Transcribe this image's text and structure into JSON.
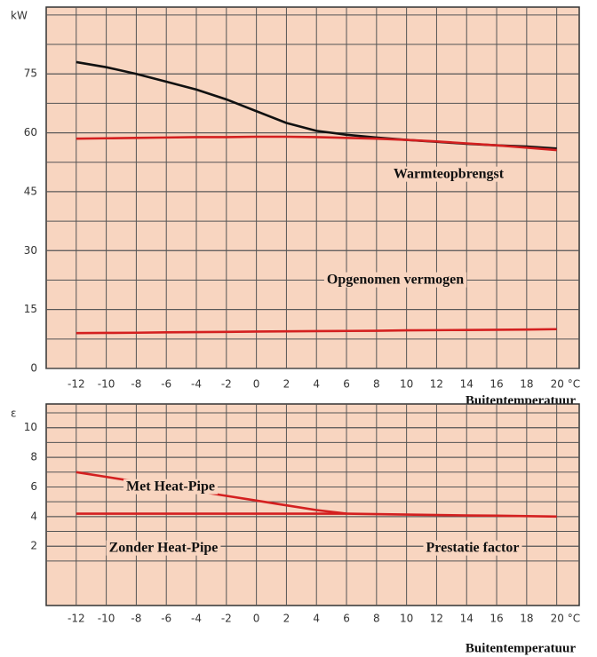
{
  "chart_data": [
    {
      "type": "line",
      "y_label": "kW",
      "x_label": "Buitentemperatuur",
      "xlim": [
        -14,
        21.5
      ],
      "xticks": [
        -12,
        -10,
        -8,
        -6,
        -4,
        -2,
        0,
        2,
        4,
        6,
        8,
        10,
        12,
        14,
        16,
        18,
        {
          "value": 20,
          "label": "20 °C"
        }
      ],
      "ylim": [
        0,
        92
      ],
      "yticks": [
        0,
        15,
        30,
        45,
        60,
        75
      ],
      "grid": true,
      "x": [
        -12,
        -10,
        -8,
        -6,
        -4,
        -2,
        0,
        2,
        4,
        6,
        8,
        10,
        12,
        14,
        16,
        18,
        20
      ],
      "series": [
        {
          "color": "#111111",
          "values": [
            78,
            76.7,
            75,
            73,
            71,
            68.5,
            65.5,
            62.5,
            60.5,
            59.5,
            58.8,
            58.2,
            57.7,
            57.2,
            56.8,
            56.5,
            56
          ]
        },
        {
          "color": "#d42020",
          "values": [
            58.5,
            58.6,
            58.7,
            58.8,
            58.9,
            58.9,
            59,
            59,
            58.9,
            58.7,
            58.5,
            58.2,
            57.8,
            57.3,
            56.8,
            56.2,
            55.6
          ]
        },
        {
          "color": "#d42020",
          "values": [
            9,
            9.05,
            9.1,
            9.2,
            9.25,
            9.3,
            9.4,
            9.45,
            9.5,
            9.55,
            9.6,
            9.7,
            9.75,
            9.8,
            9.85,
            9.9,
            10
          ]
        }
      ],
      "annotations": [
        "Warmteopbrengst",
        "Opgenomen vermogen"
      ]
    },
    {
      "type": "line",
      "y_label": "ε",
      "x_label": "Buitentemperatuur",
      "xlim": [
        -14,
        21.5
      ],
      "xticks": [
        -12,
        -10,
        -8,
        -6,
        -4,
        -2,
        0,
        2,
        4,
        6,
        8,
        10,
        12,
        14,
        16,
        18,
        {
          "value": 20,
          "label": "20 °C"
        }
      ],
      "ylim": [
        -2,
        11.6
      ],
      "yticks": [
        2,
        4,
        6,
        8,
        10
      ],
      "grid": true,
      "x": [
        -12,
        -10,
        -8,
        -6,
        -4,
        -2,
        0,
        2,
        4,
        6,
        8,
        10,
        12,
        14,
        16,
        18,
        20
      ],
      "series": [
        {
          "color": "#d42020",
          "values": [
            7,
            6.68,
            6.36,
            6.04,
            5.72,
            5.4,
            5.08,
            4.76,
            4.44,
            4.2,
            null,
            null,
            null,
            null,
            null,
            null,
            null
          ]
        },
        {
          "color": "#d42020",
          "values": [
            4.2,
            4.2,
            4.2,
            4.2,
            4.2,
            4.2,
            4.2,
            4.2,
            4.2,
            4.2,
            4.17,
            4.14,
            4.11,
            4.08,
            4.06,
            4.03,
            4.0
          ]
        }
      ],
      "annotations": [
        "Met Heat-Pipe",
        "Zonder Heat-Pipe",
        "Prestatie factor"
      ]
    }
  ]
}
